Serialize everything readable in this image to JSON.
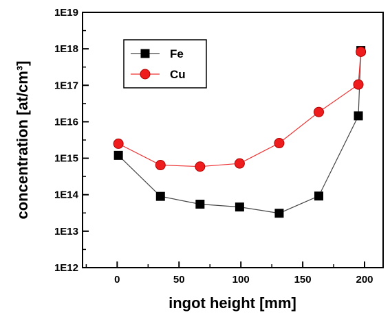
{
  "chart_data": {
    "type": "scatter",
    "title": "",
    "xlabel": "ingot height [mm]",
    "ylabel": "concentration [at/cm³]",
    "xlim": [
      -28,
      215
    ],
    "ylim_exponent": [
      12,
      19
    ],
    "y_scale": "log",
    "x_ticks": [
      0,
      50,
      100,
      150,
      200
    ],
    "y_ticks": [
      {
        "label": "1E12",
        "value": 1000000000000.0
      },
      {
        "label": "1E13",
        "value": 10000000000000.0
      },
      {
        "label": "1E14",
        "value": 100000000000000.0
      },
      {
        "label": "1E15",
        "value": 1000000000000000.0
      },
      {
        "label": "1E16",
        "value": 1e+16
      },
      {
        "label": "1E17",
        "value": 1e+17
      },
      {
        "label": "1E18",
        "value": 1e+18
      },
      {
        "label": "1E19",
        "value": 1e+19
      }
    ],
    "grid": false,
    "legend_position": "top-left",
    "series": [
      {
        "name": "Fe",
        "marker": "square",
        "color": "#000000",
        "line_color": "#444444",
        "points": [
          {
            "x": 1,
            "y": 1200000000000000.0
          },
          {
            "x": 35,
            "y": 90000000000000.0
          },
          {
            "x": 67,
            "y": 55000000000000.0
          },
          {
            "x": 99,
            "y": 46000000000000.0
          },
          {
            "x": 131,
            "y": 31000000000000.0
          },
          {
            "x": 163,
            "y": 92000000000000.0
          },
          {
            "x": 195,
            "y": 1.45e+16
          },
          {
            "x": 197,
            "y": 9e+17
          }
        ]
      },
      {
        "name": "Cu",
        "marker": "circle",
        "color": "#ee1c1c",
        "line_color": "#ee3030",
        "points": [
          {
            "x": 1,
            "y": 2500000000000000.0
          },
          {
            "x": 35,
            "y": 650000000000000.0
          },
          {
            "x": 67,
            "y": 590000000000000.0
          },
          {
            "x": 99,
            "y": 720000000000000.0
          },
          {
            "x": 131,
            "y": 2600000000000000.0
          },
          {
            "x": 163,
            "y": 1.85e+16
          },
          {
            "x": 195,
            "y": 1.05e+17
          },
          {
            "x": 197,
            "y": 8.3e+17
          }
        ]
      }
    ]
  }
}
